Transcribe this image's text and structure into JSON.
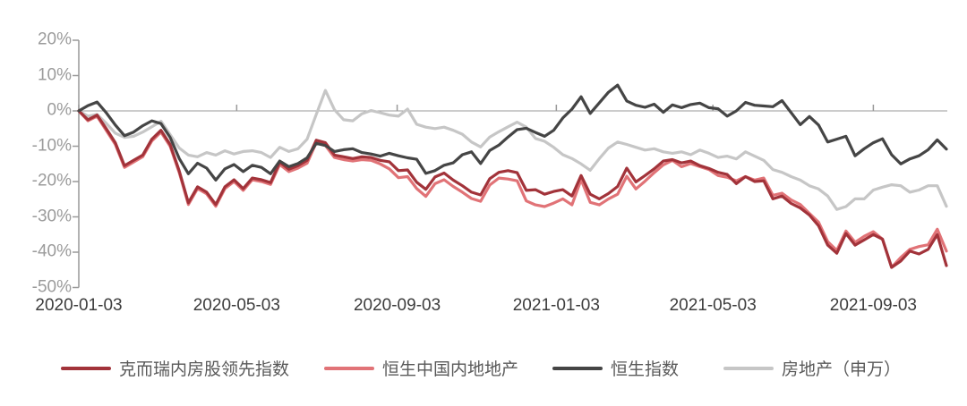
{
  "chart": {
    "axis_color": "#999999",
    "zero_line_color": "#999999",
    "y_label_color": "#9b9b9b",
    "x_label_color": "#3d3d3d",
    "legend_text_color": "#595959",
    "y_ticks": [
      {
        "label": "20%",
        "value": 20
      },
      {
        "label": "10%",
        "value": 10
      },
      {
        "label": "0%",
        "value": 0
      },
      {
        "label": "-10%",
        "value": -10
      },
      {
        "label": "-20%",
        "value": -20
      },
      {
        "label": "-30%",
        "value": -30
      },
      {
        "label": "-40%",
        "value": -40
      },
      {
        "label": "-50%",
        "value": -50
      }
    ],
    "x_ticks": [
      {
        "label": "2020-01-03",
        "week": 0
      },
      {
        "label": "2020-05-03",
        "week": 17.29
      },
      {
        "label": "2020-09-03",
        "week": 34.86
      },
      {
        "label": "2021-01-03",
        "week": 52.29
      },
      {
        "label": "2021-05-03",
        "week": 69.43
      },
      {
        "label": "2021-09-03",
        "week": 87.0
      }
    ]
  },
  "chart_data": {
    "type": "line",
    "title": "",
    "xlabel": "",
    "ylabel": "",
    "ylim": [
      -50,
      20
    ],
    "grid": "zero-line-only",
    "legend_position": "bottom",
    "x": [
      "2020-01-03",
      "2020-01-10",
      "2020-01-17",
      "2020-01-24",
      "2020-01-31",
      "2020-02-07",
      "2020-02-14",
      "2020-02-21",
      "2020-02-28",
      "2020-03-06",
      "2020-03-13",
      "2020-03-20",
      "2020-03-27",
      "2020-04-03",
      "2020-04-10",
      "2020-04-17",
      "2020-04-24",
      "2020-05-01",
      "2020-05-08",
      "2020-05-15",
      "2020-05-22",
      "2020-05-29",
      "2020-06-05",
      "2020-06-12",
      "2020-06-19",
      "2020-06-26",
      "2020-07-03",
      "2020-07-10",
      "2020-07-17",
      "2020-07-24",
      "2020-07-31",
      "2020-08-07",
      "2020-08-14",
      "2020-08-21",
      "2020-08-28",
      "2020-09-04",
      "2020-09-11",
      "2020-09-18",
      "2020-09-25",
      "2020-10-02",
      "2020-10-09",
      "2020-10-16",
      "2020-10-23",
      "2020-10-30",
      "2020-11-06",
      "2020-11-13",
      "2020-11-20",
      "2020-11-27",
      "2020-12-04",
      "2020-12-11",
      "2020-12-18",
      "2020-12-25",
      "2021-01-01",
      "2021-01-08",
      "2021-01-15",
      "2021-01-22",
      "2021-01-29",
      "2021-02-05",
      "2021-02-12",
      "2021-02-19",
      "2021-02-26",
      "2021-03-05",
      "2021-03-12",
      "2021-03-19",
      "2021-03-26",
      "2021-04-02",
      "2021-04-09",
      "2021-04-16",
      "2021-04-23",
      "2021-04-30",
      "2021-05-07",
      "2021-05-14",
      "2021-05-21",
      "2021-05-28",
      "2021-06-04",
      "2021-06-11",
      "2021-06-18",
      "2021-06-25",
      "2021-07-02",
      "2021-07-09",
      "2021-07-16",
      "2021-07-23",
      "2021-07-30",
      "2021-08-06",
      "2021-08-13",
      "2021-08-20",
      "2021-08-27",
      "2021-09-03",
      "2021-09-10",
      "2021-09-17",
      "2021-09-24",
      "2021-10-01",
      "2021-10-08",
      "2021-10-15",
      "2021-10-22",
      "2021-10-29"
    ],
    "series": [
      {
        "name": "克而瑞内房股领先指数",
        "color": "#a2333a",
        "values": [
          0,
          -2.5,
          -1.2,
          -5,
          -9,
          -15.5,
          -14,
          -12.5,
          -8,
          -5.5,
          -9.5,
          -17,
          -26,
          -21.5,
          -23,
          -26.5,
          -21.5,
          -19.5,
          -22,
          -19,
          -19.5,
          -20.3,
          -14.5,
          -16.5,
          -15.5,
          -14,
          -8.3,
          -9,
          -12.5,
          -13,
          -13.5,
          -13,
          -13.2,
          -14,
          -14.4,
          -16.9,
          -16.7,
          -20.2,
          -22.2,
          -18.7,
          -17.6,
          -19.6,
          -21.2,
          -23,
          -23.8,
          -19.2,
          -17.4,
          -16.9,
          -17.5,
          -22.5,
          -22.3,
          -23.6,
          -22.8,
          -22.3,
          -24.1,
          -18.3,
          -23.6,
          -24.9,
          -23.4,
          -21.4,
          -16.2,
          -20.1,
          -18.3,
          -16.4,
          -14.2,
          -13.8,
          -14.7,
          -14.2,
          -15.5,
          -16.3,
          -17.4,
          -18,
          -20.6,
          -18.6,
          -20,
          -19.8,
          -24.9,
          -24.1,
          -26.2,
          -27.5,
          -29.5,
          -32.5,
          -38,
          -40.3,
          -34.7,
          -38,
          -36.5,
          -35,
          -36.3,
          -44.3,
          -42.5,
          -39.7,
          -40.5,
          -39.2,
          -35,
          -43.8
        ]
      },
      {
        "name": "恒生中国内地地产",
        "color": "#e17377",
        "values": [
          0,
          -2.8,
          -1.5,
          -5.5,
          -9.5,
          -16,
          -14.5,
          -13,
          -8.5,
          -6,
          -10,
          -17.5,
          -26.5,
          -22,
          -23.5,
          -27,
          -22,
          -20,
          -22.5,
          -19.5,
          -20,
          -20.8,
          -15.2,
          -17.2,
          -16.2,
          -14.8,
          -9,
          -9.8,
          -13.2,
          -13.8,
          -14.2,
          -13.8,
          -14,
          -15,
          -16.4,
          -18.9,
          -18.6,
          -22,
          -24.2,
          -20.6,
          -19.5,
          -21.4,
          -23,
          -24.8,
          -25.6,
          -21,
          -19,
          -19.3,
          -19.8,
          -25.5,
          -26.6,
          -27.1,
          -26.1,
          -24.9,
          -26.6,
          -19.5,
          -25.9,
          -26.6,
          -24.9,
          -23.6,
          -18.5,
          -22.1,
          -19.9,
          -17.5,
          -15.3,
          -14,
          -15.8,
          -14.9,
          -15.8,
          -16.6,
          -18.3,
          -18.8,
          -19.8,
          -18.6,
          -19.6,
          -19,
          -23.9,
          -23.3,
          -25.2,
          -26.5,
          -29,
          -31.5,
          -37,
          -39.5,
          -34,
          -37.2,
          -35.5,
          -34.2,
          -36.3,
          -44.3,
          -41.5,
          -39.2,
          -38.4,
          -37.9,
          -33.5,
          -39.7
        ]
      },
      {
        "name": "恒生指数",
        "color": "#454545",
        "values": [
          0,
          1.5,
          2.5,
          -0.5,
          -4,
          -7,
          -6,
          -4.2,
          -2.8,
          -3.6,
          -7.5,
          -13.5,
          -17.8,
          -14.8,
          -16.2,
          -19.6,
          -16.4,
          -15.2,
          -17.2,
          -15.4,
          -16,
          -17.8,
          -14.2,
          -15.8,
          -14.9,
          -13.3,
          -9.2,
          -9.8,
          -11.5,
          -11,
          -10.7,
          -11.8,
          -12.2,
          -12.8,
          -12,
          -12.7,
          -13.3,
          -13.7,
          -17.7,
          -16.9,
          -15.4,
          -14.7,
          -12.4,
          -11.6,
          -14.9,
          -11.2,
          -9.7,
          -7.4,
          -5.3,
          -4.9,
          -6.1,
          -7.2,
          -5.5,
          -2,
          0.5,
          4,
          -0.7,
          2.3,
          5.3,
          7.3,
          2.8,
          1.6,
          1,
          1.9,
          -0.4,
          1.7,
          0.9,
          1.8,
          2.2,
          0.9,
          0.6,
          -1.5,
          0,
          2.4,
          1.6,
          1.4,
          1.2,
          2.9,
          -0.5,
          -3.9,
          -1.6,
          -4,
          -8.8,
          -8,
          -7.2,
          -12.7,
          -10.7,
          -9,
          -7.9,
          -12.4,
          -15,
          -13.6,
          -12.7,
          -11,
          -8.2,
          -10.8
        ]
      },
      {
        "name": "房地产（申万）",
        "color": "#c6c6c6",
        "values": [
          0,
          -1.5,
          -1,
          -3.5,
          -6.3,
          -7.5,
          -7.2,
          -6,
          -4.5,
          -2.9,
          -6.7,
          -10.5,
          -12.5,
          -13,
          -11.8,
          -12.5,
          -11.3,
          -12.2,
          -11.5,
          -11.3,
          -11.8,
          -13.2,
          -10.3,
          -11.5,
          -10.7,
          -8,
          -1,
          5.8,
          0.3,
          -2.5,
          -2.8,
          -0.8,
          0.1,
          -0.5,
          -1.2,
          -1.5,
          0.5,
          -3.8,
          -4.6,
          -5,
          -4.6,
          -5.5,
          -6.6,
          -8.8,
          -10.2,
          -7.4,
          -5.9,
          -4.5,
          -3.2,
          -4.6,
          -7.8,
          -8.6,
          -10.3,
          -12.4,
          -13.5,
          -15,
          -16.8,
          -13.5,
          -10.5,
          -8.8,
          -9.5,
          -10.3,
          -11.1,
          -10.7,
          -11.6,
          -12,
          -11.6,
          -12.4,
          -11.1,
          -12,
          -13.2,
          -12.8,
          -13.6,
          -11.6,
          -12.8,
          -14,
          -16.6,
          -17.4,
          -18.6,
          -19.6,
          -21.2,
          -22.1,
          -24.1,
          -27.9,
          -27.1,
          -24.9,
          -24.9,
          -22.4,
          -21.6,
          -20.9,
          -21.2,
          -23,
          -22.4,
          -21.2,
          -21.2,
          -27
        ]
      }
    ]
  },
  "legend": {
    "item_lefts": [
      68,
      362,
      617,
      808
    ]
  }
}
